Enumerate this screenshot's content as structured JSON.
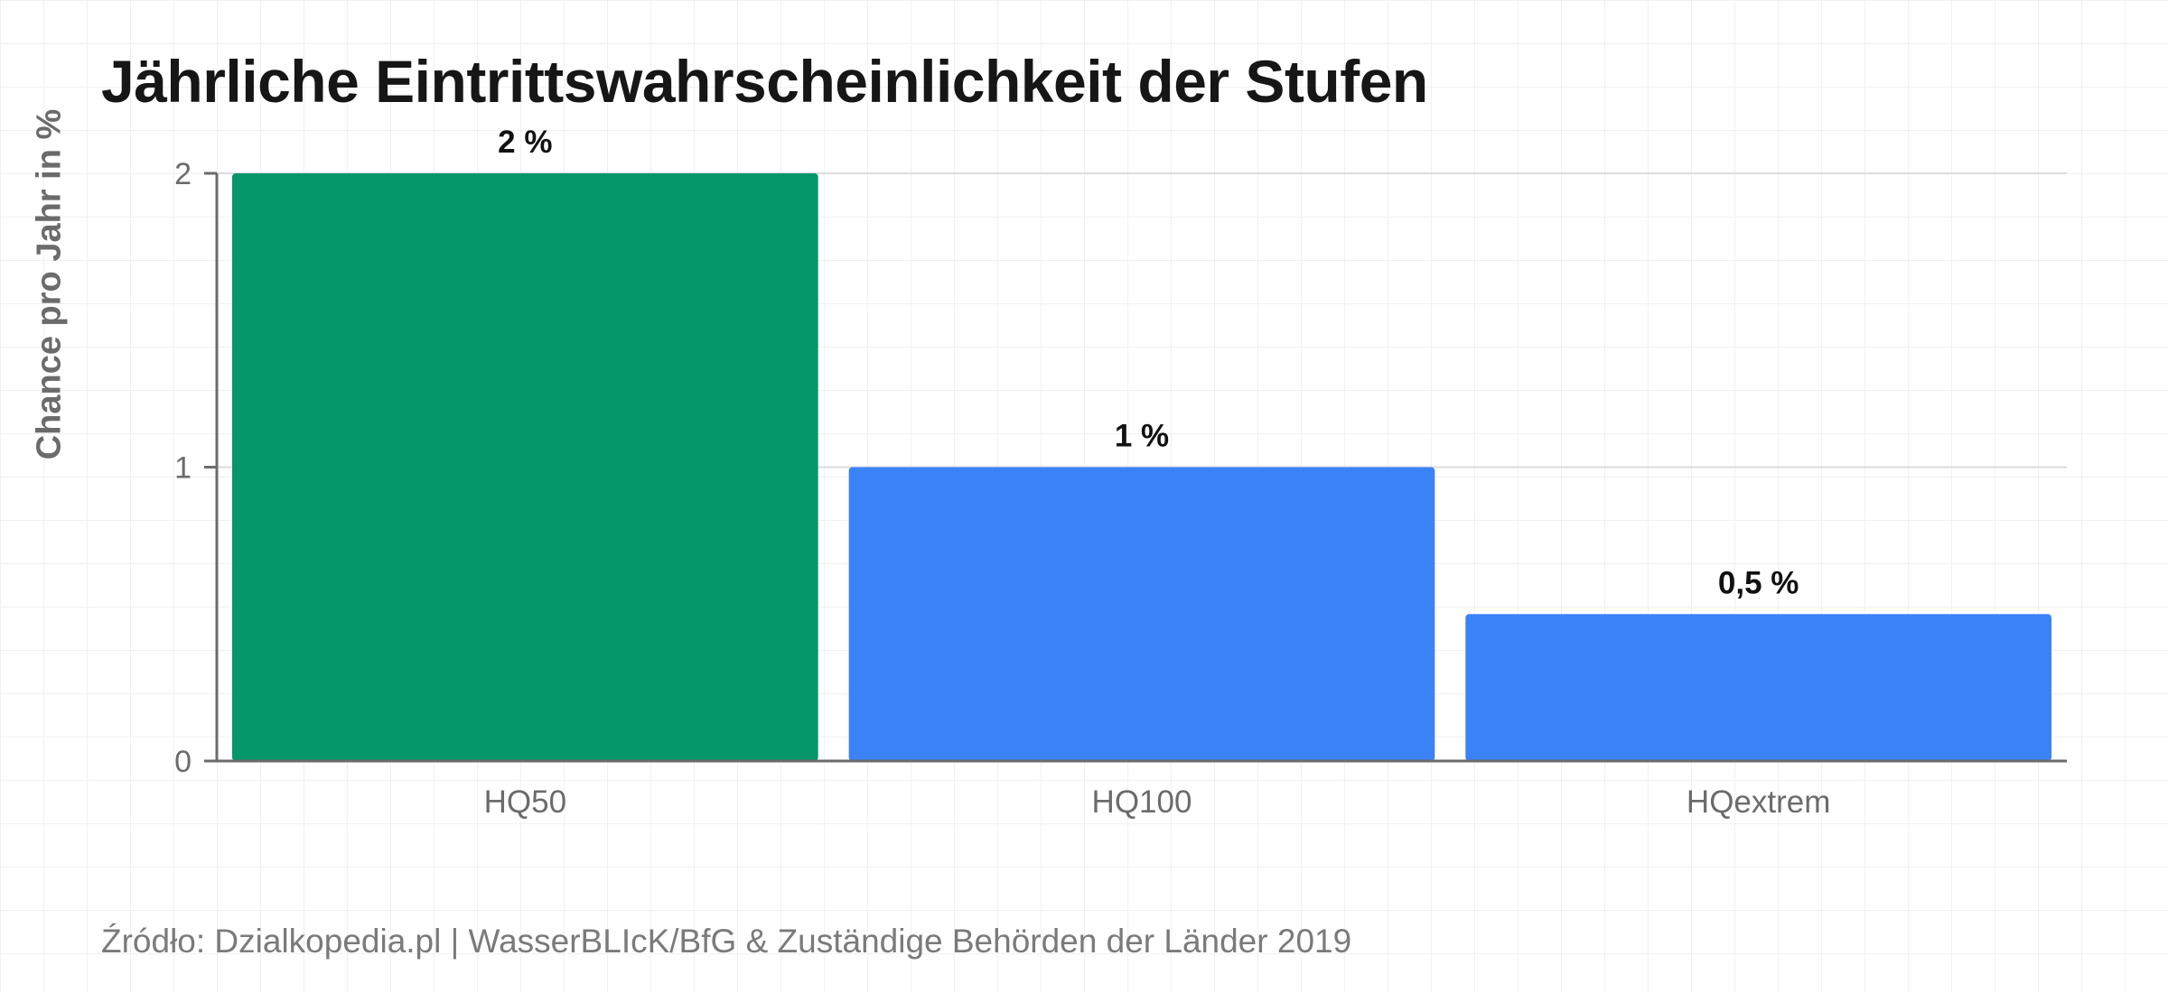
{
  "chart_data": {
    "type": "bar",
    "title": "Jährliche Eintrittswahrscheinlichkeit der Stufen",
    "xlabel": "",
    "ylabel": "Chance pro Jahr in %",
    "categories": [
      "HQ50",
      "HQ100",
      "HQextrem"
    ],
    "values": [
      2,
      1,
      0.5
    ],
    "data_labels": [
      "2 %",
      "1 %",
      "0,5 %"
    ],
    "bar_colors": [
      "#059669",
      "#3b82f6",
      "#3b82f6"
    ],
    "ylim": [
      0,
      2
    ],
    "yticks": [
      0,
      1,
      2
    ],
    "ytick_labels": [
      "0",
      "1",
      "2"
    ],
    "grid": true,
    "legend": "none"
  },
  "source_text": "Źródło: Dzialkopedia.pl | WasserBLIcK/BfG & Zuständige Behörden der Länder 2019",
  "colors": {
    "axis": "#6b6b6b",
    "gridline": "#dcdcdc",
    "tick_text": "#6b6b6b",
    "data_label": "#111111"
  }
}
